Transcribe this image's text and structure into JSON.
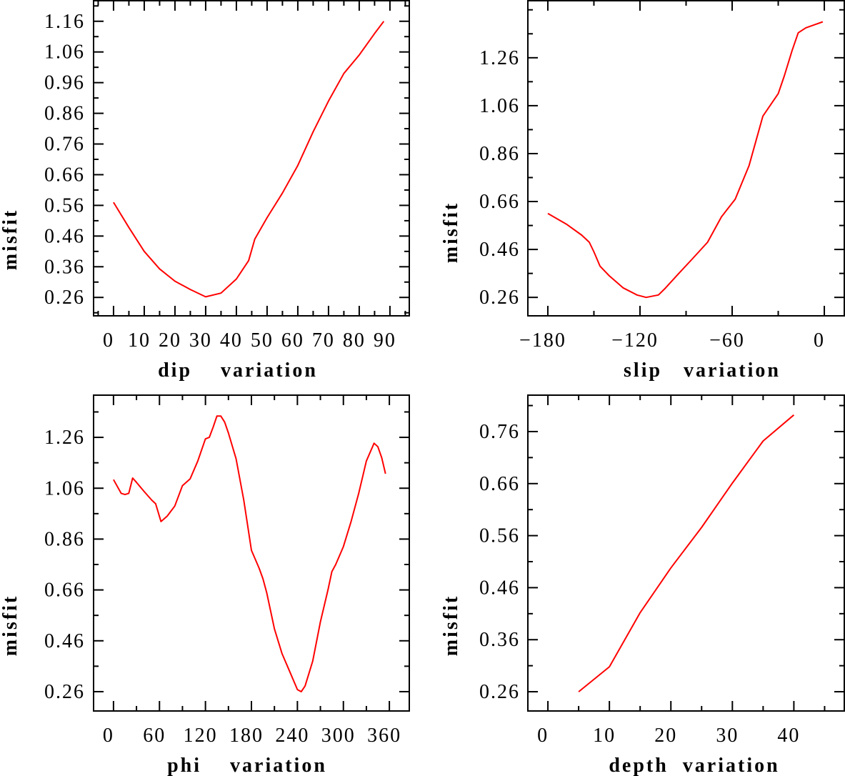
{
  "line_color": "#ff0000",
  "chart_data": [
    {
      "type": "line",
      "xlabel": "dip    variation",
      "ylabel": "misfit",
      "xlim": [
        -6.5,
        96.3
      ],
      "ylim": [
        0.2,
        1.227
      ],
      "xticks": [
        0,
        10,
        20,
        30,
        40,
        50,
        60,
        70,
        80,
        90
      ],
      "xtick_labels": [
        "0",
        "10",
        "20",
        "30",
        "40",
        "50",
        "60",
        "70",
        "80",
        "90"
      ],
      "xminor_step": 5,
      "yticks": [
        0.26,
        0.36,
        0.46,
        0.56,
        0.66,
        0.76,
        0.86,
        0.96,
        1.06,
        1.16
      ],
      "ytick_labels": [
        "0.26",
        "0.36",
        "0.46",
        "0.56",
        "0.66",
        "0.76",
        "0.86",
        "0.96",
        "1.06",
        "1.16"
      ],
      "yminor_step": 0.05,
      "x": [
        0,
        5,
        10,
        15,
        20,
        25,
        30,
        35,
        40,
        44,
        46,
        50,
        55,
        60,
        65,
        70,
        75,
        80,
        85,
        88
      ],
      "y": [
        0.57,
        0.488,
        0.41,
        0.353,
        0.313,
        0.286,
        0.262,
        0.274,
        0.32,
        0.38,
        0.45,
        0.52,
        0.6,
        0.69,
        0.8,
        0.9,
        0.99,
        1.05,
        1.12,
        1.16
      ]
    },
    {
      "type": "line",
      "xlabel": "slip   variation",
      "ylabel": "misfit",
      "xlim": [
        -193,
        13
      ],
      "ylim": [
        0.183,
        1.498
      ],
      "xticks": [
        -180,
        -120,
        -60,
        0
      ],
      "xtick_labels": [
        "−180",
        "−120",
        "−60",
        "0"
      ],
      "xminor_step": 30,
      "yticks": [
        0.26,
        0.46,
        0.66,
        0.86,
        1.06,
        1.26
      ],
      "ytick_labels": [
        "0.26",
        "0.46",
        "0.66",
        "0.86",
        "1.06",
        "1.26"
      ],
      "yminor_step": 0.1,
      "x": [
        -180,
        -168,
        -158,
        -153,
        -150,
        -146,
        -140,
        -131,
        -122,
        -116,
        -108,
        -104,
        -95,
        -86,
        -76,
        -67,
        -58,
        -49,
        -40,
        -30,
        -26,
        -21,
        -17,
        -12,
        -1
      ],
      "y": [
        0.61,
        0.566,
        0.52,
        0.49,
        0.45,
        0.39,
        0.35,
        0.3,
        0.27,
        0.26,
        0.27,
        0.295,
        0.358,
        0.42,
        0.49,
        0.596,
        0.67,
        0.81,
        1.016,
        1.11,
        1.185,
        1.29,
        1.364,
        1.385,
        1.41
      ]
    },
    {
      "type": "line",
      "xlabel": "phi    variation",
      "ylabel": "misfit",
      "xlim": [
        -26,
        386
      ],
      "ylim": [
        0.184,
        1.426
      ],
      "xticks": [
        0,
        60,
        120,
        180,
        240,
        300,
        360
      ],
      "xtick_labels": [
        "0",
        "60",
        "120",
        "180",
        "240",
        "300",
        "360"
      ],
      "xminor_step": 30,
      "yticks": [
        0.26,
        0.46,
        0.66,
        0.86,
        1.06,
        1.26
      ],
      "ytick_labels": [
        "0.26",
        "0.46",
        "0.66",
        "0.86",
        "1.06",
        "1.26"
      ],
      "yminor_step": 0.1,
      "x": [
        0,
        10,
        15,
        20,
        25,
        30,
        40,
        50,
        55,
        62,
        70,
        80,
        90,
        100,
        110,
        120,
        125,
        130,
        135,
        140,
        145,
        150,
        160,
        170,
        180,
        190,
        195,
        200,
        210,
        220,
        230,
        240,
        245,
        250,
        260,
        270,
        280,
        285,
        290,
        300,
        310,
        320,
        330,
        340,
        345,
        350,
        355
      ],
      "y": [
        1.094,
        1.04,
        1.035,
        1.04,
        1.1,
        1.083,
        1.047,
        1.013,
        0.999,
        0.929,
        0.95,
        0.99,
        1.07,
        1.097,
        1.167,
        1.254,
        1.26,
        1.3,
        1.344,
        1.344,
        1.32,
        1.277,
        1.176,
        1.013,
        0.816,
        0.746,
        0.704,
        0.648,
        0.507,
        0.409,
        0.339,
        0.268,
        0.26,
        0.282,
        0.38,
        0.535,
        0.662,
        0.732,
        0.76,
        0.83,
        0.929,
        1.04,
        1.167,
        1.237,
        1.223,
        1.18,
        1.117
      ]
    },
    {
      "type": "line",
      "xlabel": "depth  variation",
      "ylabel": "misfit",
      "xlim": [
        -3.26,
        48.2
      ],
      "ylim": [
        0.223,
        0.83
      ],
      "xticks": [
        0,
        10,
        20,
        30,
        40
      ],
      "xtick_labels": [
        "0",
        "10",
        "20",
        "30",
        "40"
      ],
      "xminor_step": 5,
      "yticks": [
        0.26,
        0.36,
        0.46,
        0.56,
        0.66,
        0.76
      ],
      "ytick_labels": [
        "0.26",
        "0.36",
        "0.46",
        "0.56",
        "0.66",
        "0.76"
      ],
      "yminor_step": 0.05,
      "x": [
        5,
        10,
        15,
        20,
        25,
        30,
        35,
        40
      ],
      "y": [
        0.26,
        0.308,
        0.412,
        0.498,
        0.576,
        0.661,
        0.742,
        0.792
      ]
    }
  ]
}
